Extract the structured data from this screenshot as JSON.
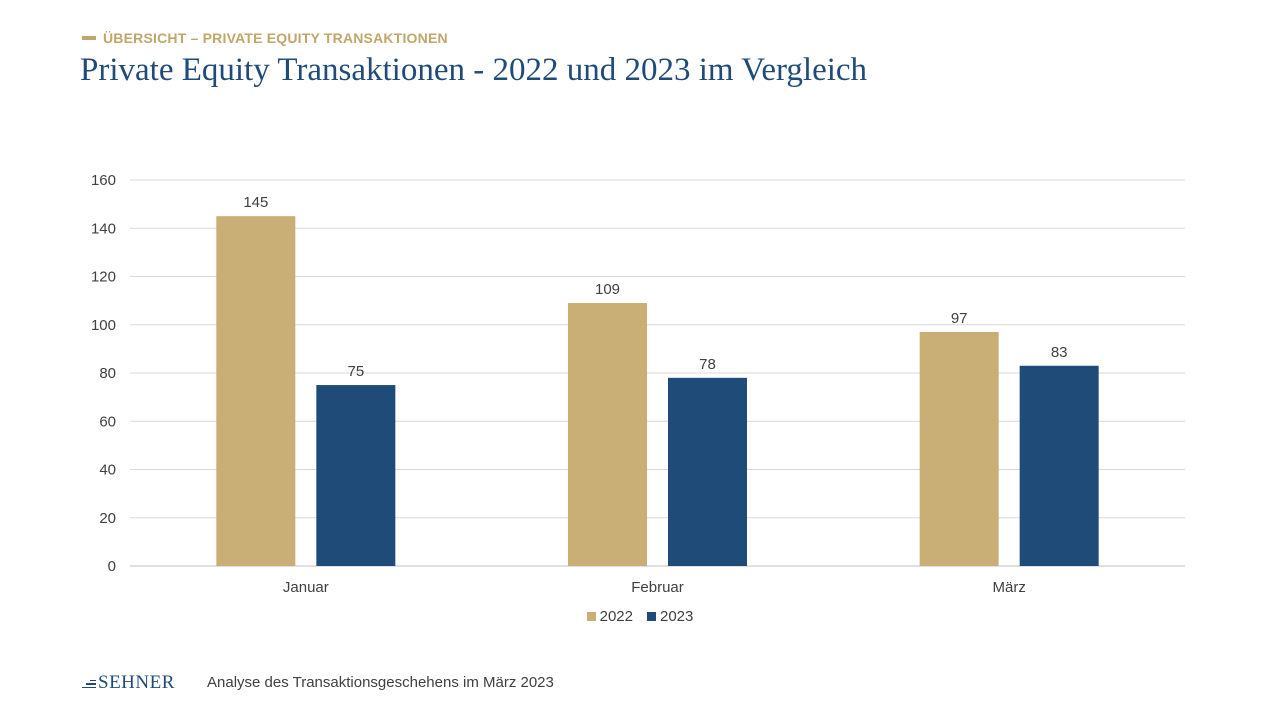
{
  "header": {
    "kicker": "ÜBERSICHT – PRIVATE EQUITY TRANSAKTIONEN",
    "title": "Private Equity Transaktionen - 2022 und 2023 im Vergleich"
  },
  "footer": {
    "logo_text": "SEHNER",
    "caption": "Analyse des Transaktionsgeschehens im März 2023"
  },
  "colors": {
    "series_2022": "#c9ae76",
    "series_2023": "#1f4b78",
    "title": "#1f4b78",
    "kicker": "#c0a66a"
  },
  "chart_data": {
    "type": "bar",
    "title": "",
    "xlabel": "",
    "ylabel": "",
    "categories": [
      "Januar",
      "Februar",
      "März"
    ],
    "series": [
      {
        "name": "2022",
        "values": [
          145,
          109,
          97
        ]
      },
      {
        "name": "2023",
        "values": [
          75,
          78,
          83
        ]
      }
    ],
    "ylim": [
      0,
      160
    ],
    "yticks": [
      0,
      20,
      40,
      60,
      80,
      100,
      120,
      140,
      160
    ],
    "grid": true,
    "legend": "bottom-center",
    "data_labels": true
  }
}
